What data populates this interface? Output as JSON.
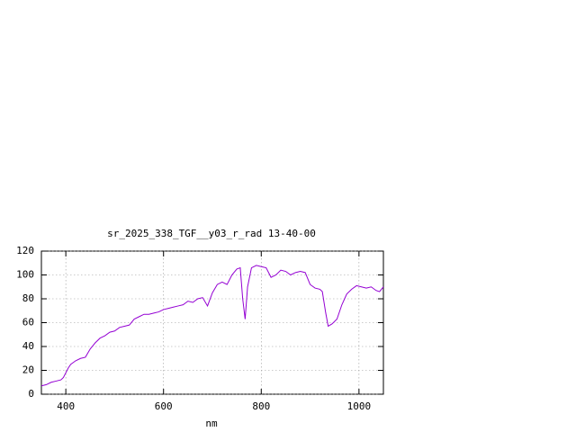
{
  "chart_data": {
    "type": "line",
    "title": "sr_2025_338_TGF__y03_r_rad 13-40-00",
    "x_label": "nm",
    "x": [
      350,
      360,
      370,
      380,
      390,
      395,
      405,
      410,
      420,
      430,
      440,
      450,
      460,
      470,
      480,
      490,
      500,
      510,
      520,
      530,
      540,
      550,
      560,
      570,
      580,
      590,
      600,
      610,
      620,
      630,
      640,
      650,
      660,
      670,
      680,
      690,
      700,
      710,
      720,
      730,
      740,
      750,
      757,
      762,
      767,
      772,
      780,
      790,
      800,
      810,
      820,
      830,
      840,
      850,
      860,
      870,
      880,
      890,
      900,
      910,
      920,
      925,
      932,
      937,
      945,
      955,
      965,
      975,
      985,
      995,
      1005,
      1015,
      1025,
      1035,
      1042,
      1050
    ],
    "series": [
      {
        "color": "#9400d3",
        "values": [
          7,
          8,
          10,
          11,
          12,
          14,
          22,
          25,
          28,
          30,
          31,
          38,
          43,
          47,
          49,
          52,
          53,
          56,
          57,
          58,
          63,
          65,
          67,
          67,
          68,
          69,
          71,
          72,
          73,
          74,
          75,
          78,
          77,
          80,
          81,
          74,
          85,
          92,
          94,
          92,
          100,
          105,
          106,
          80,
          63,
          90,
          106,
          108,
          107,
          106,
          98,
          100,
          104,
          103,
          100,
          102,
          103,
          102,
          92,
          89,
          88,
          86,
          68,
          57,
          59,
          63,
          75,
          84,
          88,
          91,
          90,
          89,
          90,
          87,
          86,
          90
        ]
      }
    ],
    "xlim": [
      350,
      1050
    ],
    "ylim": [
      0,
      120
    ],
    "xticks": [
      400,
      600,
      800,
      1000
    ],
    "yticks": [
      0,
      20,
      40,
      60,
      80,
      100,
      120
    ],
    "grid": true
  }
}
